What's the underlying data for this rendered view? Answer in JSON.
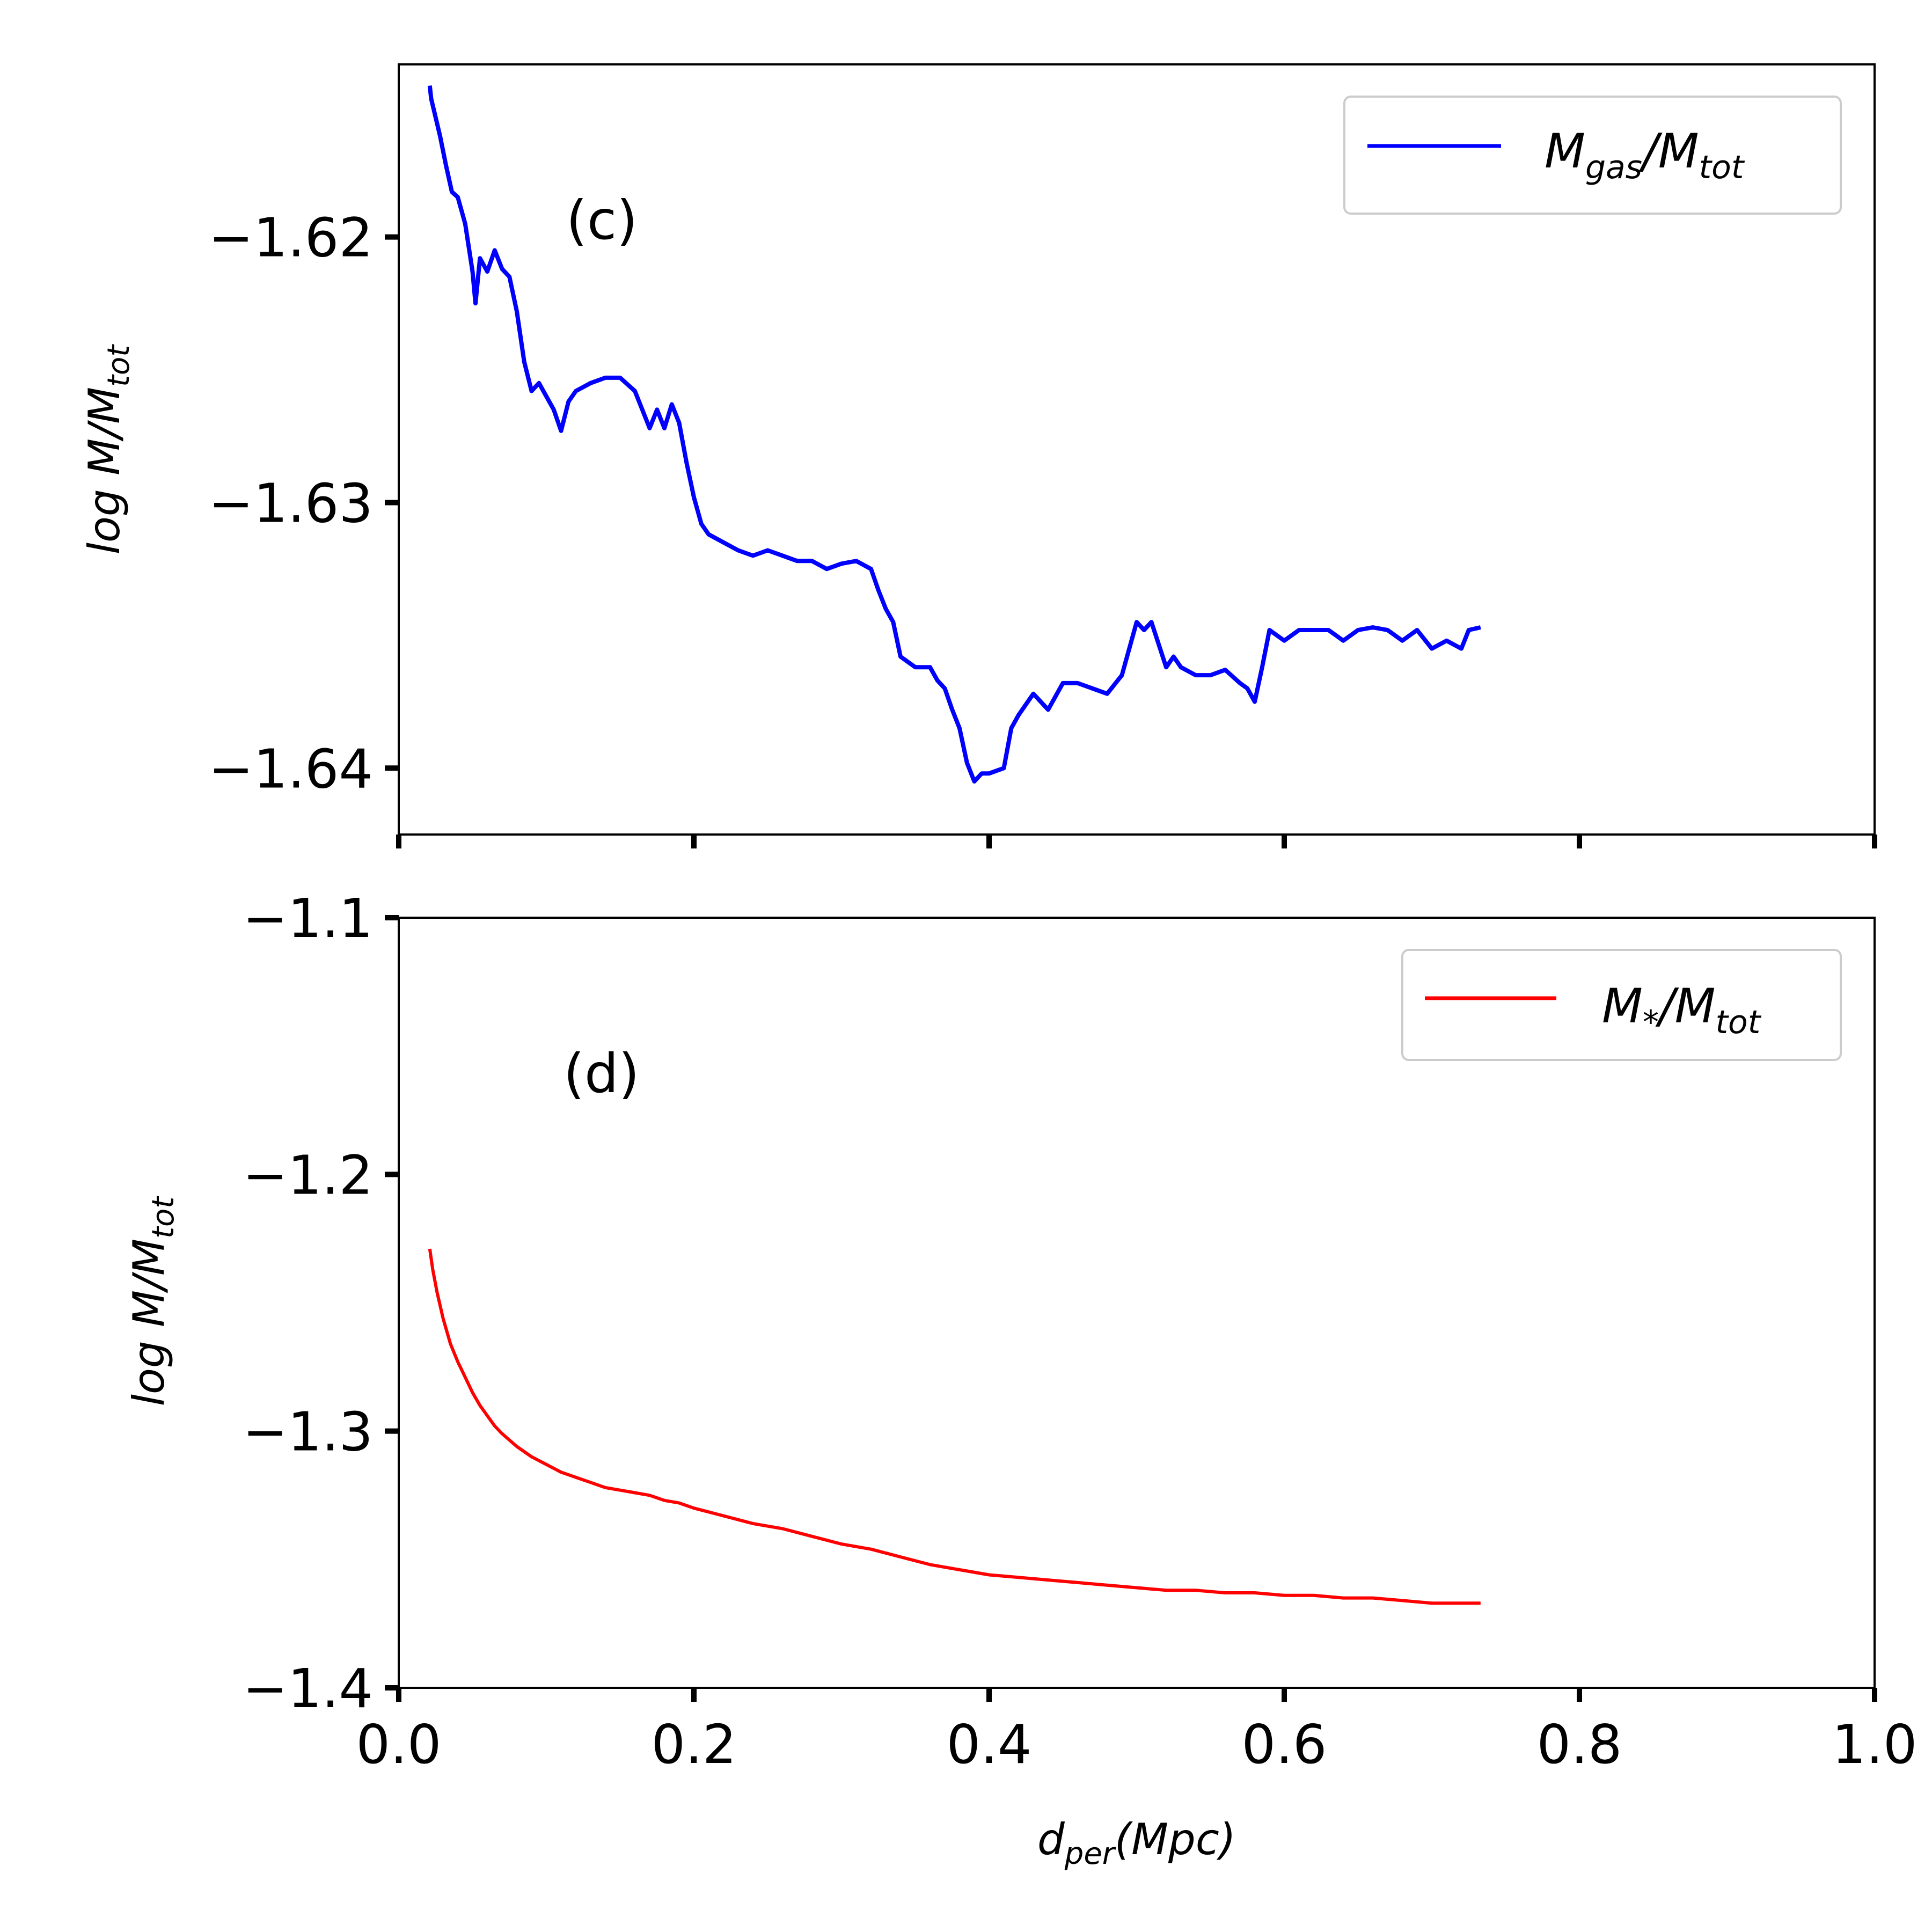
{
  "chart_data": [
    {
      "type": "line",
      "panel_label": "(c)",
      "ylabel": "log M/M",
      "ylabel_sub": "tot",
      "ylim": [
        -1.6425,
        -1.6135
      ],
      "xlim": [
        0.0,
        1.0
      ],
      "yticks": [
        -1.62,
        -1.63,
        -1.64
      ],
      "ytick_labels": [
        "−1.62",
        "−1.63",
        "−1.64"
      ],
      "xticks": [
        0.0,
        0.2,
        0.4,
        0.6,
        0.8,
        1.0
      ],
      "grid": false,
      "legend_position": "top-right",
      "series": [
        {
          "name": "M_gas/M_tot",
          "legend_main": "M",
          "legend_sub1": "gas",
          "legend_mid": "/M",
          "legend_sub2": "tot",
          "color": "#0000ff",
          "x": [
            0.021,
            0.022,
            0.025,
            0.028,
            0.032,
            0.036,
            0.04,
            0.045,
            0.05,
            0.052,
            0.055,
            0.06,
            0.065,
            0.07,
            0.075,
            0.08,
            0.085,
            0.09,
            0.095,
            0.1,
            0.105,
            0.11,
            0.115,
            0.12,
            0.13,
            0.14,
            0.15,
            0.16,
            0.165,
            0.17,
            0.175,
            0.18,
            0.185,
            0.19,
            0.195,
            0.2,
            0.205,
            0.21,
            0.22,
            0.23,
            0.24,
            0.25,
            0.26,
            0.27,
            0.28,
            0.29,
            0.3,
            0.31,
            0.32,
            0.325,
            0.33,
            0.335,
            0.34,
            0.35,
            0.36,
            0.365,
            0.37,
            0.375,
            0.38,
            0.385,
            0.39,
            0.395,
            0.4,
            0.41,
            0.415,
            0.42,
            0.43,
            0.44,
            0.45,
            0.46,
            0.47,
            0.48,
            0.49,
            0.5,
            0.505,
            0.51,
            0.52,
            0.525,
            0.53,
            0.54,
            0.55,
            0.56,
            0.57,
            0.575,
            0.58,
            0.585,
            0.59,
            0.6,
            0.61,
            0.62,
            0.63,
            0.64,
            0.65,
            0.66,
            0.67,
            0.68,
            0.69,
            0.7,
            0.71,
            0.72,
            0.725,
            0.733
          ],
          "y": [
            -1.6143,
            -1.6148,
            -1.6155,
            -1.6162,
            -1.6173,
            -1.6183,
            -1.6185,
            -1.6195,
            -1.6213,
            -1.6225,
            -1.6208,
            -1.6213,
            -1.6205,
            -1.6212,
            -1.6215,
            -1.6228,
            -1.6247,
            -1.6258,
            -1.6255,
            -1.626,
            -1.6265,
            -1.6273,
            -1.6262,
            -1.6258,
            -1.6255,
            -1.6253,
            -1.6253,
            -1.6258,
            -1.6265,
            -1.6272,
            -1.6265,
            -1.6272,
            -1.6263,
            -1.627,
            -1.6285,
            -1.6298,
            -1.6308,
            -1.6312,
            -1.6315,
            -1.6318,
            -1.632,
            -1.6318,
            -1.632,
            -1.6322,
            -1.6322,
            -1.6325,
            -1.6323,
            -1.6322,
            -1.6325,
            -1.6333,
            -1.634,
            -1.6345,
            -1.6358,
            -1.6362,
            -1.6362,
            -1.6367,
            -1.637,
            -1.6378,
            -1.6385,
            -1.6398,
            -1.6405,
            -1.6402,
            -1.6402,
            -1.64,
            -1.6385,
            -1.638,
            -1.6372,
            -1.6378,
            -1.6368,
            -1.6368,
            -1.637,
            -1.6372,
            -1.6365,
            -1.6345,
            -1.6348,
            -1.6345,
            -1.6362,
            -1.6358,
            -1.6362,
            -1.6365,
            -1.6365,
            -1.6363,
            -1.6368,
            -1.637,
            -1.6375,
            -1.6362,
            -1.6348,
            -1.6352,
            -1.6348,
            -1.6348,
            -1.6348,
            -1.6352,
            -1.6348,
            -1.6347,
            -1.6348,
            -1.6352,
            -1.6348,
            -1.6355,
            -1.6352,
            -1.6355,
            -1.6348,
            -1.6347
          ]
        }
      ]
    },
    {
      "type": "line",
      "panel_label": "(d)",
      "ylabel": "log M/M",
      "ylabel_sub": "tot",
      "ylim": [
        -1.4,
        -1.1
      ],
      "xlim": [
        0.0,
        1.0
      ],
      "yticks": [
        -1.1,
        -1.2,
        -1.3,
        -1.4
      ],
      "ytick_labels": [
        "−1.1",
        "−1.2",
        "−1.3",
        "−1.4"
      ],
      "xticks": [
        0.0,
        0.2,
        0.4,
        0.6,
        0.8,
        1.0
      ],
      "xtick_labels": [
        "0.0",
        "0.2",
        "0.4",
        "0.6",
        "0.8",
        "1.0"
      ],
      "xlabel": "d",
      "xlabel_sub": "per",
      "xlabel_rest": "(Mpc)",
      "grid": false,
      "legend_position": "top-right",
      "series": [
        {
          "name": "M_*/M_tot",
          "legend_main": "M",
          "legend_sub1": "*",
          "legend_mid": "/M",
          "legend_sub2": "tot",
          "color": "#ff0000",
          "x": [
            0.021,
            0.023,
            0.026,
            0.03,
            0.035,
            0.04,
            0.045,
            0.05,
            0.055,
            0.06,
            0.065,
            0.07,
            0.08,
            0.09,
            0.1,
            0.11,
            0.12,
            0.13,
            0.14,
            0.15,
            0.16,
            0.17,
            0.18,
            0.19,
            0.2,
            0.22,
            0.24,
            0.26,
            0.28,
            0.3,
            0.32,
            0.34,
            0.36,
            0.38,
            0.4,
            0.42,
            0.44,
            0.46,
            0.48,
            0.5,
            0.52,
            0.54,
            0.56,
            0.58,
            0.6,
            0.62,
            0.64,
            0.66,
            0.68,
            0.7,
            0.72,
            0.733
          ],
          "y": [
            -1.229,
            -1.237,
            -1.246,
            -1.256,
            -1.266,
            -1.273,
            -1.279,
            -1.285,
            -1.29,
            -1.294,
            -1.298,
            -1.301,
            -1.306,
            -1.31,
            -1.313,
            -1.316,
            -1.318,
            -1.32,
            -1.322,
            -1.323,
            -1.324,
            -1.325,
            -1.327,
            -1.328,
            -1.33,
            -1.333,
            -1.336,
            -1.338,
            -1.341,
            -1.344,
            -1.346,
            -1.349,
            -1.352,
            -1.354,
            -1.356,
            -1.357,
            -1.358,
            -1.359,
            -1.36,
            -1.361,
            -1.362,
            -1.362,
            -1.363,
            -1.363,
            -1.364,
            -1.364,
            -1.365,
            -1.365,
            -1.366,
            -1.367,
            -1.367,
            -1.367
          ]
        }
      ]
    }
  ]
}
